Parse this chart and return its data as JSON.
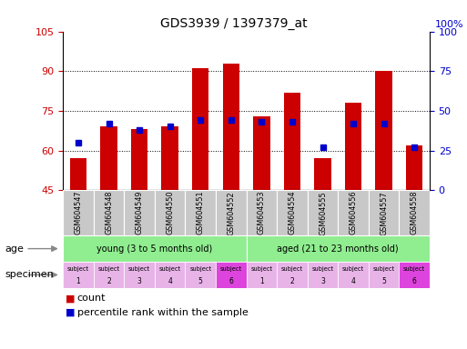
{
  "title": "GDS3939 / 1397379_at",
  "samples": [
    "GSM604547",
    "GSM604548",
    "GSM604549",
    "GSM604550",
    "GSM604551",
    "GSM604552",
    "GSM604553",
    "GSM604554",
    "GSM604555",
    "GSM604556",
    "GSM604557",
    "GSM604558"
  ],
  "counts": [
    57,
    69,
    68,
    69,
    91,
    93,
    73,
    82,
    57,
    78,
    90,
    62
  ],
  "percentile_ranks": [
    30,
    42,
    38,
    40,
    44,
    44,
    43,
    43,
    27,
    42,
    42,
    27
  ],
  "ylim_left": [
    45,
    105
  ],
  "ylim_right": [
    0,
    100
  ],
  "yticks_left": [
    45,
    60,
    75,
    90,
    105
  ],
  "yticks_right": [
    0,
    25,
    50,
    75,
    100
  ],
  "bar_color": "#cc0000",
  "marker_color": "#0000cc",
  "bar_bottom": 45,
  "age_group_labels": [
    "young (3 to 5 months old)",
    "aged (21 to 23 months old)"
  ],
  "age_group_color": "#90ee90",
  "specimen_labels_line1": "subject",
  "specimen_numbers": [
    "1",
    "2",
    "3",
    "4",
    "5",
    "6",
    "1",
    "2",
    "3",
    "4",
    "5",
    "6"
  ],
  "specimen_color_light": "#e8b4e8",
  "specimen_color_dark": "#dd44dd",
  "specimen_dark_indices": [
    5,
    11
  ],
  "legend_count_color": "#cc0000",
  "legend_percentile_color": "#0000cc",
  "yaxis_left_color": "#cc0000",
  "yaxis_right_color": "#0000cc",
  "sample_label_bg": "#c8c8c8",
  "grid_yticks": [
    60,
    75,
    90
  ]
}
